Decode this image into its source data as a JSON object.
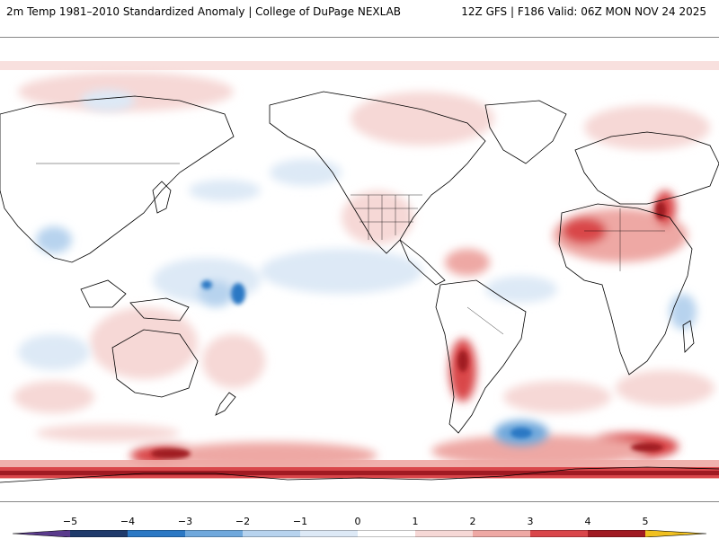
{
  "header": {
    "left_title": "2m Temp 1981–2010 Standardized Anomaly | College of DuPage NEXLAB",
    "right_title": "12Z GFS | F186 Valid: 06Z MON NOV 24 2025"
  },
  "colorbar": {
    "ticks": [
      "−5",
      "−4",
      "−3",
      "−2",
      "−1",
      "0",
      "1",
      "2",
      "3",
      "4",
      "5"
    ],
    "tick_values": [
      -5,
      -4,
      -3,
      -2,
      -1,
      0,
      1,
      2,
      3,
      4,
      5
    ],
    "colors": {
      "below_min": "#5a3a8c",
      "-5": "#1f3a6b",
      "-4": "#2b78c4",
      "-3": "#6fa8dc",
      "-2": "#b7d3ee",
      "-1": "#dde9f6",
      "0": "#ffffff",
      "1": "#f6d8d6",
      "2": "#eea8a4",
      "3": "#d9464a",
      "4": "#a01a22",
      "above_max": "#f0c020"
    }
  }
}
